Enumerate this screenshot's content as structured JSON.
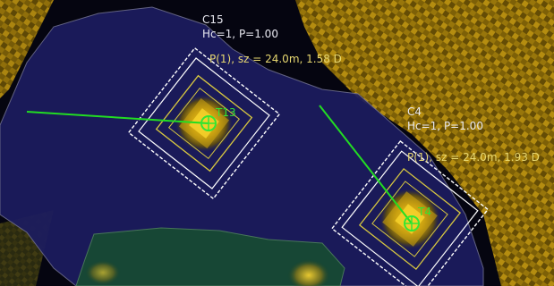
{
  "clusters": [
    {
      "name": "C15",
      "stats": "Hc=1, P=1.00",
      "measure": "P(1), sz = 24.0m, 1.58 D",
      "track_label": "T13"
    },
    {
      "name": "C4",
      "stats": "Hc=1, P=1.00",
      "measure": "P(1), sz = 24.0m, 1.93 D",
      "track_label": "T4"
    }
  ],
  "colors": {
    "background": "#000000",
    "region_blue": "#1a1a5c",
    "region_green": "#15402a",
    "clutter_yellow": "#c8a010",
    "gate_white": "#ffffff",
    "gate_yellow": "#d8c840",
    "track_green": "#22dd22"
  }
}
